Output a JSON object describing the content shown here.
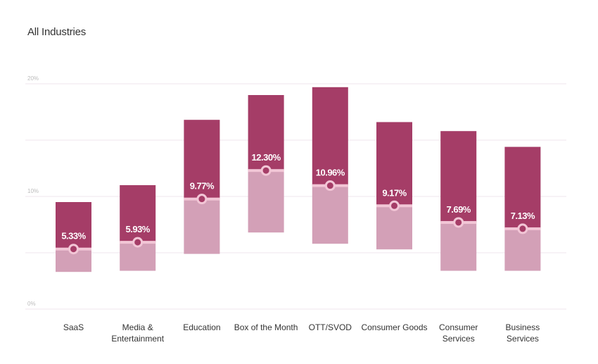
{
  "title": "All Industries",
  "chart_data": {
    "type": "bar",
    "subtype": "floating-range-with-median",
    "title": "All Industries",
    "ylim": [
      0,
      20
    ],
    "yticks": [
      0,
      10,
      20
    ],
    "ytick_labels": [
      "0%",
      "10%",
      "20%"
    ],
    "grid": true,
    "categories": [
      [
        "SaaS"
      ],
      [
        "Media &",
        "Entertainment"
      ],
      [
        "Education"
      ],
      [
        "Box of the Month"
      ],
      [
        "OTT/SVOD"
      ],
      [
        "Consumer Goods"
      ],
      [
        "Consumer",
        "Services"
      ],
      [
        "Business",
        "Services"
      ]
    ],
    "low": [
      3.3,
      3.4,
      4.9,
      6.8,
      5.8,
      5.3,
      3.4,
      3.4
    ],
    "high": [
      9.5,
      11.0,
      16.8,
      19.0,
      19.7,
      16.6,
      15.8,
      14.4
    ],
    "median": [
      5.33,
      5.93,
      9.77,
      12.3,
      10.96,
      9.17,
      7.69,
      7.13
    ],
    "median_labels": [
      "5.33%",
      "5.93%",
      "9.77%",
      "12.30%",
      "10.96%",
      "9.17%",
      "7.69%",
      "7.13%"
    ],
    "colors": {
      "upper": "#a53d67",
      "lower": "#d3a0b7",
      "median_line": "#f2c6d6",
      "grid": "#efe6ec"
    }
  }
}
